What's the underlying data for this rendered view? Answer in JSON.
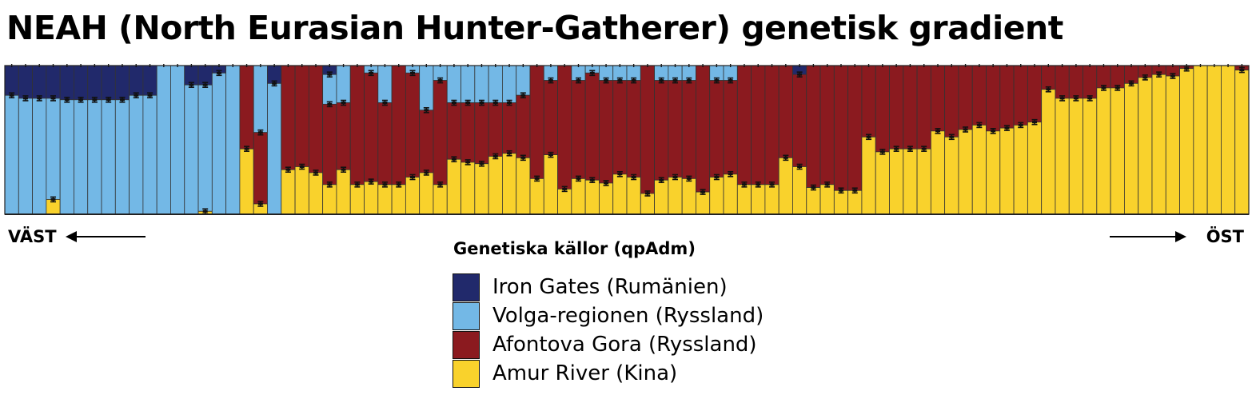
{
  "title": "NEAH (North Eurasian Hunter-Gatherer) genetisk gradient",
  "direction": {
    "west": "VÄST",
    "east": "ÖST"
  },
  "chart_data": {
    "type": "bar",
    "stacked": true,
    "normalized": true,
    "ylim": [
      0,
      1
    ],
    "grid": false,
    "legend_title": "Genetiska källor (qpAdm)",
    "legend_position": "bottom-center",
    "series": [
      {
        "name": "Iron Gates (Rumänien)",
        "color": "#21296b",
        "values": [
          0.2,
          0.22,
          0.22,
          0.22,
          0.23,
          0.23,
          0.23,
          0.23,
          0.23,
          0.2,
          0.2,
          0.0,
          0.0,
          0.13,
          0.13,
          0.05,
          0.0,
          0.0,
          0.0,
          0.12,
          0.0,
          0.0,
          0.0,
          0.06,
          0.0,
          0.0,
          0.0,
          0.0,
          0.0,
          0.0,
          0.0,
          0.0,
          0.0,
          0.0,
          0.0,
          0.0,
          0.0,
          0.0,
          0.0,
          0.0,
          0.0,
          0.0,
          0.0,
          0.0,
          0.0,
          0.0,
          0.0,
          0.0,
          0.0,
          0.0,
          0.0,
          0.0,
          0.0,
          0.0,
          0.0,
          0.0,
          0.0,
          0.06,
          0.0,
          0.0,
          0.0,
          0.0,
          0.0,
          0.0,
          0.0,
          0.0,
          0.0,
          0.0,
          0.0,
          0.0,
          0.0,
          0.0,
          0.0,
          0.0,
          0.0,
          0.0,
          0.0,
          0.0,
          0.0,
          0.0,
          0.0,
          0.0,
          0.0,
          0.0,
          0.0,
          0.0,
          0.0,
          0.0,
          0.0,
          0.0
        ]
      },
      {
        "name": "Volga-regionen (Ryssland)",
        "color": "#73b8e6",
        "values": [
          0.8,
          0.78,
          0.78,
          0.68,
          0.77,
          0.77,
          0.77,
          0.77,
          0.77,
          0.8,
          0.8,
          1.0,
          1.0,
          0.87,
          0.85,
          0.95,
          1.0,
          0.0,
          0.45,
          0.88,
          0.0,
          0.0,
          0.0,
          0.2,
          0.25,
          0.0,
          0.05,
          0.25,
          0.0,
          0.05,
          0.3,
          0.1,
          0.25,
          0.25,
          0.25,
          0.25,
          0.25,
          0.2,
          0.0,
          0.1,
          0.0,
          0.1,
          0.05,
          0.1,
          0.1,
          0.1,
          0.0,
          0.1,
          0.1,
          0.1,
          0.0,
          0.1,
          0.1,
          0.0,
          0.0,
          0.0,
          0.0,
          0.0,
          0.0,
          0.0,
          0.0,
          0.0,
          0.0,
          0.0,
          0.0,
          0.0,
          0.0,
          0.0,
          0.0,
          0.0,
          0.0,
          0.0,
          0.0,
          0.0,
          0.0,
          0.0,
          0.0,
          0.0,
          0.0,
          0.0,
          0.0,
          0.0,
          0.0,
          0.0,
          0.0,
          0.0,
          0.0,
          0.0,
          0.0,
          0.0
        ]
      },
      {
        "name": "Afontova Gora (Ryssland)",
        "color": "#8b1a1f",
        "values": [
          0.0,
          0.0,
          0.0,
          0.0,
          0.0,
          0.0,
          0.0,
          0.0,
          0.0,
          0.0,
          0.0,
          0.0,
          0.0,
          0.0,
          0.0,
          0.0,
          0.0,
          0.56,
          0.48,
          0.0,
          0.7,
          0.68,
          0.72,
          0.54,
          0.45,
          0.8,
          0.73,
          0.55,
          0.8,
          0.7,
          0.42,
          0.7,
          0.38,
          0.4,
          0.41,
          0.36,
          0.34,
          0.42,
          0.76,
          0.5,
          0.83,
          0.66,
          0.72,
          0.69,
          0.63,
          0.65,
          0.86,
          0.67,
          0.65,
          0.66,
          0.85,
          0.65,
          0.63,
          0.8,
          0.8,
          0.8,
          0.62,
          0.62,
          0.82,
          0.8,
          0.84,
          0.84,
          0.48,
          0.58,
          0.56,
          0.56,
          0.56,
          0.44,
          0.48,
          0.43,
          0.4,
          0.44,
          0.42,
          0.4,
          0.38,
          0.16,
          0.22,
          0.22,
          0.22,
          0.15,
          0.15,
          0.12,
          0.08,
          0.06,
          0.07,
          0.02,
          0.0,
          0.0,
          0.0,
          0.03
        ]
      },
      {
        "name": "Amur River (Kina)",
        "color": "#f9d22c",
        "values": [
          0.0,
          0.0,
          0.0,
          0.1,
          0.0,
          0.0,
          0.0,
          0.0,
          0.0,
          0.0,
          0.0,
          0.0,
          0.0,
          0.0,
          0.02,
          0.0,
          0.0,
          0.44,
          0.07,
          0.0,
          0.3,
          0.32,
          0.28,
          0.2,
          0.3,
          0.2,
          0.22,
          0.2,
          0.2,
          0.25,
          0.28,
          0.2,
          0.37,
          0.35,
          0.34,
          0.39,
          0.41,
          0.38,
          0.24,
          0.4,
          0.17,
          0.24,
          0.23,
          0.21,
          0.27,
          0.25,
          0.14,
          0.23,
          0.25,
          0.24,
          0.15,
          0.25,
          0.27,
          0.2,
          0.2,
          0.2,
          0.38,
          0.32,
          0.18,
          0.2,
          0.16,
          0.16,
          0.52,
          0.42,
          0.44,
          0.44,
          0.44,
          0.56,
          0.52,
          0.57,
          0.6,
          0.56,
          0.58,
          0.6,
          0.62,
          0.84,
          0.78,
          0.78,
          0.78,
          0.85,
          0.85,
          0.88,
          0.92,
          0.94,
          0.93,
          0.98,
          1.0,
          1.0,
          1.0,
          0.97
        ]
      }
    ]
  }
}
